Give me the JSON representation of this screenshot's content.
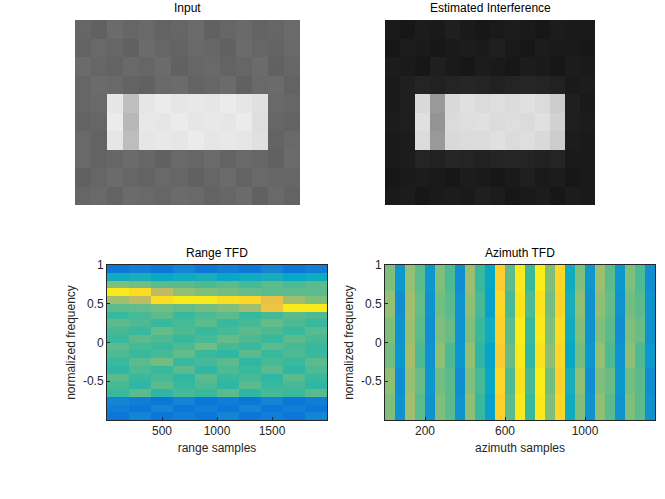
{
  "chart_data": [
    {
      "type": "image",
      "title": "Input",
      "tick_labels": false,
      "zlim": [
        0,
        1
      ],
      "z": [
        [
          0.4,
          0.38,
          0.42,
          0.4,
          0.41,
          0.39,
          0.4,
          0.42,
          0.38,
          0.4,
          0.41,
          0.39,
          0.4,
          0.42
        ],
        [
          0.39,
          0.41,
          0.4,
          0.38,
          0.42,
          0.4,
          0.39,
          0.41,
          0.4,
          0.38,
          0.42,
          0.4,
          0.39,
          0.41
        ],
        [
          0.42,
          0.4,
          0.39,
          0.41,
          0.4,
          0.42,
          0.38,
          0.4,
          0.41,
          0.39,
          0.4,
          0.42,
          0.38,
          0.4
        ],
        [
          0.4,
          0.42,
          0.41,
          0.39,
          0.38,
          0.41,
          0.42,
          0.39,
          0.4,
          0.42,
          0.38,
          0.41,
          0.42,
          0.39
        ],
        [
          0.4,
          0.41,
          0.9,
          0.75,
          0.9,
          0.92,
          0.9,
          0.91,
          0.9,
          0.92,
          0.9,
          0.88,
          0.41,
          0.4
        ],
        [
          0.39,
          0.4,
          0.92,
          0.72,
          0.91,
          0.9,
          0.92,
          0.9,
          0.91,
          0.9,
          0.92,
          0.87,
          0.4,
          0.39
        ],
        [
          0.41,
          0.39,
          0.9,
          0.74,
          0.9,
          0.91,
          0.9,
          0.92,
          0.9,
          0.91,
          0.9,
          0.88,
          0.39,
          0.41
        ],
        [
          0.41,
          0.39,
          0.4,
          0.42,
          0.4,
          0.38,
          0.41,
          0.4,
          0.42,
          0.39,
          0.41,
          0.4,
          0.38,
          0.42
        ],
        [
          0.38,
          0.4,
          0.42,
          0.4,
          0.39,
          0.41,
          0.4,
          0.38,
          0.4,
          0.42,
          0.39,
          0.41,
          0.4,
          0.4
        ],
        [
          0.4,
          0.41,
          0.39,
          0.42,
          0.41,
          0.4,
          0.42,
          0.41,
          0.39,
          0.4,
          0.42,
          0.38,
          0.41,
          0.39
        ]
      ]
    },
    {
      "type": "image",
      "title": "Estimated Interference",
      "tick_labels": false,
      "zlim": [
        0,
        1
      ],
      "z": [
        [
          0.1,
          0.09,
          0.11,
          0.1,
          0.12,
          0.1,
          0.09,
          0.1,
          0.11,
          0.1,
          0.09,
          0.11,
          0.1,
          0.1
        ],
        [
          0.09,
          0.11,
          0.1,
          0.09,
          0.1,
          0.11,
          0.1,
          0.12,
          0.1,
          0.09,
          0.11,
          0.1,
          0.1,
          0.09
        ],
        [
          0.11,
          0.1,
          0.09,
          0.12,
          0.1,
          0.09,
          0.11,
          0.1,
          0.09,
          0.11,
          0.1,
          0.09,
          0.11,
          0.1
        ],
        [
          0.1,
          0.12,
          0.14,
          0.13,
          0.14,
          0.15,
          0.14,
          0.13,
          0.14,
          0.15,
          0.14,
          0.13,
          0.1,
          0.11
        ],
        [
          0.1,
          0.12,
          0.85,
          0.6,
          0.85,
          0.88,
          0.86,
          0.87,
          0.86,
          0.88,
          0.86,
          0.8,
          0.12,
          0.1
        ],
        [
          0.11,
          0.12,
          0.88,
          0.58,
          0.86,
          0.87,
          0.88,
          0.86,
          0.87,
          0.86,
          0.88,
          0.82,
          0.12,
          0.11
        ],
        [
          0.1,
          0.11,
          0.86,
          0.6,
          0.85,
          0.86,
          0.86,
          0.88,
          0.86,
          0.87,
          0.85,
          0.8,
          0.11,
          0.1
        ],
        [
          0.1,
          0.11,
          0.14,
          0.13,
          0.15,
          0.14,
          0.13,
          0.14,
          0.15,
          0.14,
          0.13,
          0.14,
          0.1,
          0.1
        ],
        [
          0.09,
          0.1,
          0.11,
          0.1,
          0.09,
          0.11,
          0.1,
          0.09,
          0.1,
          0.12,
          0.1,
          0.11,
          0.09,
          0.1
        ],
        [
          0.1,
          0.11,
          0.09,
          0.1,
          0.11,
          0.1,
          0.12,
          0.11,
          0.09,
          0.1,
          0.11,
          0.09,
          0.11,
          0.1
        ]
      ]
    },
    {
      "type": "heatmap",
      "title": "Range TFD",
      "x_label": "range samples",
      "y_label": "normalized frequency",
      "xlim": [
        0,
        2000
      ],
      "xticks": [
        500,
        1000,
        1500
      ],
      "ylim": [
        -1,
        1
      ],
      "yticks": [
        -0.5,
        0,
        0.5,
        1
      ],
      "zlim": [
        0,
        1
      ],
      "x": [
        100,
        300,
        500,
        700,
        900,
        1100,
        1300,
        1500,
        1700,
        1900
      ],
      "y": [
        -0.95,
        -0.85,
        -0.75,
        -0.65,
        -0.55,
        -0.45,
        -0.35,
        -0.25,
        -0.15,
        -0.05,
        0.05,
        0.15,
        0.25,
        0.35,
        0.45,
        0.55,
        0.65,
        0.75,
        0.85,
        0.95
      ],
      "z": [
        [
          0.2,
          0.25,
          0.2,
          0.22,
          0.2,
          0.25,
          0.2,
          0.22,
          0.2,
          0.25
        ],
        [
          0.22,
          0.2,
          0.25,
          0.2,
          0.22,
          0.2,
          0.25,
          0.2,
          0.22,
          0.2
        ],
        [
          0.25,
          0.22,
          0.2,
          0.25,
          0.2,
          0.22,
          0.2,
          0.25,
          0.2,
          0.22
        ],
        [
          0.5,
          0.55,
          0.48,
          0.52,
          0.5,
          0.55,
          0.48,
          0.52,
          0.5,
          0.55
        ],
        [
          0.52,
          0.48,
          0.55,
          0.5,
          0.53,
          0.48,
          0.55,
          0.5,
          0.52,
          0.48
        ],
        [
          0.55,
          0.5,
          0.52,
          0.48,
          0.55,
          0.5,
          0.52,
          0.48,
          0.55,
          0.5
        ],
        [
          0.48,
          0.53,
          0.5,
          0.55,
          0.48,
          0.53,
          0.5,
          0.55,
          0.48,
          0.53
        ],
        [
          0.5,
          0.55,
          0.58,
          0.5,
          0.52,
          0.55,
          0.48,
          0.52,
          0.5,
          0.55
        ],
        [
          0.53,
          0.5,
          0.52,
          0.56,
          0.5,
          0.48,
          0.55,
          0.5,
          0.53,
          0.5
        ],
        [
          0.55,
          0.52,
          0.5,
          0.53,
          0.58,
          0.52,
          0.5,
          0.55,
          0.52,
          0.5
        ],
        [
          0.5,
          0.55,
          0.53,
          0.5,
          0.52,
          0.56,
          0.53,
          0.5,
          0.55,
          0.52
        ],
        [
          0.52,
          0.5,
          0.56,
          0.53,
          0.5,
          0.52,
          0.55,
          0.53,
          0.5,
          0.54
        ],
        [
          0.55,
          0.53,
          0.5,
          0.52,
          0.55,
          0.5,
          0.52,
          0.56,
          0.53,
          0.5
        ],
        [
          0.5,
          0.52,
          0.55,
          0.5,
          0.53,
          0.55,
          0.5,
          0.52,
          0.55,
          0.53
        ],
        [
          0.55,
          0.56,
          0.58,
          0.56,
          0.58,
          0.6,
          0.65,
          0.82,
          0.95,
          0.95
        ],
        [
          0.65,
          0.7,
          0.92,
          0.95,
          0.95,
          0.92,
          0.9,
          0.8,
          0.65,
          0.6
        ],
        [
          0.95,
          0.92,
          0.7,
          0.62,
          0.6,
          0.58,
          0.56,
          0.55,
          0.55,
          0.55
        ],
        [
          0.6,
          0.58,
          0.55,
          0.55,
          0.53,
          0.55,
          0.52,
          0.55,
          0.53,
          0.55
        ],
        [
          0.4,
          0.42,
          0.38,
          0.4,
          0.42,
          0.38,
          0.4,
          0.42,
          0.38,
          0.4
        ],
        [
          0.2,
          0.22,
          0.2,
          0.25,
          0.2,
          0.22,
          0.2,
          0.25,
          0.2,
          0.22
        ]
      ]
    },
    {
      "type": "heatmap",
      "title": "Azimuth TFD",
      "x_label": "azimuth samples",
      "y_label": "normalized frequency",
      "xlim": [
        0,
        1350
      ],
      "xticks": [
        200,
        600,
        1000
      ],
      "ylim": [
        -1,
        1
      ],
      "yticks": [
        -0.5,
        0,
        0.5,
        1
      ],
      "zlim": [
        0,
        1
      ],
      "x": [
        25,
        75,
        125,
        175,
        225,
        275,
        325,
        375,
        425,
        475,
        525,
        575,
        625,
        675,
        725,
        775,
        825,
        875,
        925,
        975,
        1025,
        1075,
        1125,
        1175,
        1225,
        1275,
        1325
      ],
      "y": [
        -0.8333,
        -0.5,
        -0.1667,
        0.1667,
        0.5,
        0.8333
      ],
      "z": [
        [
          0.6,
          0.3,
          0.65,
          0.55,
          0.3,
          0.6,
          0.55,
          0.3,
          0.62,
          0.5,
          0.35,
          0.88,
          0.55,
          0.95,
          0.5,
          0.95,
          0.6,
          0.9,
          0.4,
          0.6,
          0.3,
          0.62,
          0.55,
          0.3,
          0.6,
          0.55,
          0.3
        ],
        [
          0.62,
          0.28,
          0.63,
          0.57,
          0.32,
          0.58,
          0.55,
          0.28,
          0.6,
          0.52,
          0.38,
          0.9,
          0.53,
          0.93,
          0.52,
          0.96,
          0.58,
          0.88,
          0.42,
          0.62,
          0.28,
          0.6,
          0.57,
          0.32,
          0.58,
          0.55,
          0.28
        ],
        [
          0.58,
          0.32,
          0.66,
          0.53,
          0.3,
          0.62,
          0.53,
          0.32,
          0.63,
          0.48,
          0.36,
          0.86,
          0.57,
          0.95,
          0.48,
          0.93,
          0.62,
          0.9,
          0.38,
          0.58,
          0.32,
          0.63,
          0.53,
          0.3,
          0.62,
          0.53,
          0.32
        ],
        [
          0.6,
          0.3,
          0.64,
          0.55,
          0.28,
          0.6,
          0.57,
          0.3,
          0.6,
          0.5,
          0.4,
          0.88,
          0.55,
          0.96,
          0.5,
          0.95,
          0.6,
          0.92,
          0.4,
          0.6,
          0.3,
          0.6,
          0.55,
          0.28,
          0.6,
          0.57,
          0.3
        ],
        [
          0.63,
          0.28,
          0.65,
          0.56,
          0.3,
          0.58,
          0.55,
          0.3,
          0.62,
          0.52,
          0.35,
          0.9,
          0.52,
          0.94,
          0.53,
          0.94,
          0.58,
          0.89,
          0.42,
          0.62,
          0.3,
          0.62,
          0.56,
          0.3,
          0.58,
          0.55,
          0.3
        ],
        [
          0.6,
          0.32,
          0.63,
          0.55,
          0.32,
          0.6,
          0.53,
          0.28,
          0.64,
          0.5,
          0.37,
          0.87,
          0.55,
          0.95,
          0.5,
          0.96,
          0.6,
          0.9,
          0.4,
          0.6,
          0.32,
          0.64,
          0.55,
          0.32,
          0.6,
          0.53,
          0.28
        ]
      ]
    }
  ]
}
